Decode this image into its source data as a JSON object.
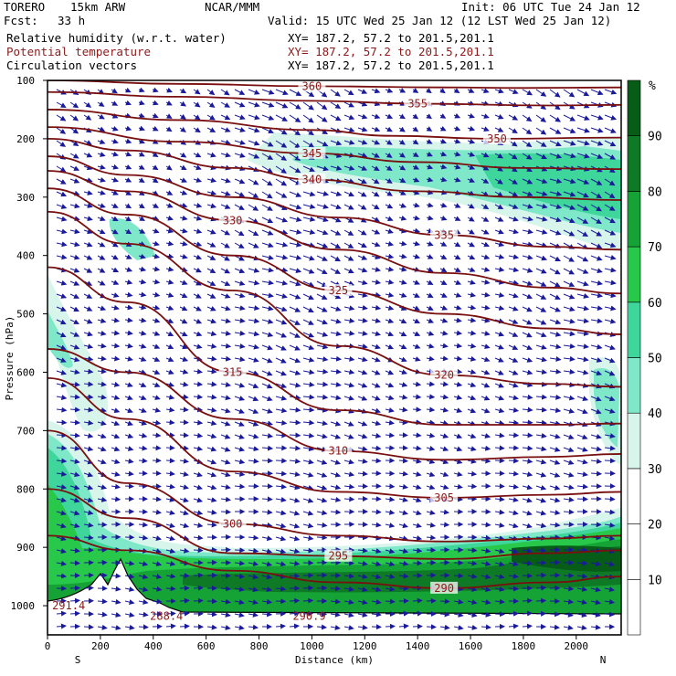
{
  "header": {
    "model": "TORERO",
    "resolution": "15km ARW",
    "center": "NCAR/MMM",
    "init": "Init: 06 UTC Tue 24 Jan 12",
    "fcst_label": "Fcst:",
    "fcst_value": "33 h",
    "valid": "Valid: 15 UTC Wed 25 Jan 12 (12 LST Wed 25 Jan 12)",
    "fields": [
      {
        "name": "Relative humidity (w.r.t. water)",
        "xy": "XY= 187.2, 57.2 to 201.5,201.1",
        "color": "#000000"
      },
      {
        "name": "Potential temperature",
        "xy": "XY= 187.2, 57.2 to 201.5,201.1",
        "color": "#8b1a1a"
      },
      {
        "name": "Circulation vectors",
        "xy": "XY= 187.2, 57.2 to 201.5,201.1",
        "color": "#000000"
      }
    ]
  },
  "chart_data": {
    "type": "heatmap",
    "xlabel": "Distance (km)",
    "ylabel": "Pressure (hPa)",
    "xlim": [
      0,
      2170
    ],
    "ylim": [
      1050,
      100
    ],
    "x_ticks": [
      "0",
      "200",
      "400",
      "600",
      "800",
      "1000",
      "1200",
      "1400",
      "1600",
      "1800",
      "2000"
    ],
    "y_ticks": [
      "100",
      "200",
      "300",
      "400",
      "500",
      "600",
      "700",
      "800",
      "900",
      "1000"
    ],
    "x_end_labels": {
      "left": "S",
      "right": "N"
    },
    "colorbar": {
      "unit": "%",
      "levels": [
        "10",
        "20",
        "30",
        "40",
        "50",
        "60",
        "70",
        "80",
        "90"
      ],
      "colors": [
        "#ffffff",
        "#ffffff",
        "#ffffff",
        "#d8f5ec",
        "#7ee8c8",
        "#3ed69a",
        "#28c84a",
        "#15a336",
        "#0e7a26",
        "#075c18"
      ]
    },
    "theta_contours": [
      {
        "label": "360",
        "points": [
          [
            0,
            100
          ],
          [
            500,
            106
          ],
          [
            1000,
            110
          ],
          [
            1500,
            112
          ],
          [
            1800,
            113
          ],
          [
            2170,
            112
          ]
        ]
      },
      {
        "label": "355",
        "points": [
          [
            0,
            120
          ],
          [
            500,
            128
          ],
          [
            1000,
            135
          ],
          [
            1400,
            140
          ],
          [
            1900,
            143
          ],
          [
            2170,
            142
          ]
        ]
      },
      {
        "label": "350",
        "points": [
          [
            0,
            150
          ],
          [
            500,
            168
          ],
          [
            1000,
            185
          ],
          [
            1300,
            195
          ],
          [
            1700,
            200
          ],
          [
            2170,
            198
          ]
        ]
      },
      {
        "label": "345",
        "points": [
          [
            0,
            180
          ],
          [
            500,
            205
          ],
          [
            1000,
            225
          ],
          [
            1400,
            240
          ],
          [
            1800,
            250
          ],
          [
            2170,
            252
          ]
        ]
      },
      {
        "label": "340",
        "points": [
          [
            0,
            200
          ],
          [
            300,
            220
          ],
          [
            700,
            250
          ],
          [
            1000,
            270
          ],
          [
            1400,
            290
          ],
          [
            1800,
            300
          ],
          [
            2170,
            305
          ]
        ]
      },
      {
        "label": "335",
        "points": [
          [
            0,
            230
          ],
          [
            300,
            262
          ],
          [
            700,
            300
          ],
          [
            1100,
            335
          ],
          [
            1500,
            365
          ],
          [
            1900,
            385
          ],
          [
            2170,
            390
          ]
        ]
      },
      {
        "label": "330",
        "points": [
          [
            0,
            255
          ],
          [
            300,
            290
          ],
          [
            700,
            340
          ],
          [
            1100,
            390
          ],
          [
            1500,
            430
          ],
          [
            1900,
            455
          ],
          [
            2170,
            465
          ]
        ]
      },
      {
        "label": "325",
        "points": [
          [
            0,
            285
          ],
          [
            300,
            330
          ],
          [
            700,
            400
          ],
          [
            1100,
            460
          ],
          [
            1500,
            500
          ],
          [
            1900,
            525
          ],
          [
            2170,
            535
          ]
        ]
      },
      {
        "label": "320",
        "points": [
          [
            0,
            325
          ],
          [
            300,
            380
          ],
          [
            700,
            460
          ],
          [
            1100,
            555
          ],
          [
            1500,
            605
          ],
          [
            1900,
            620
          ],
          [
            2170,
            625
          ]
        ]
      },
      {
        "label": "315",
        "points": [
          [
            0,
            420
          ],
          [
            300,
            480
          ],
          [
            700,
            600
          ],
          [
            1100,
            665
          ],
          [
            1500,
            690
          ],
          [
            1900,
            690
          ],
          [
            2170,
            688
          ]
        ]
      },
      {
        "label": "310",
        "points": [
          [
            0,
            560
          ],
          [
            300,
            600
          ],
          [
            700,
            680
          ],
          [
            1100,
            735
          ],
          [
            1500,
            750
          ],
          [
            1900,
            745
          ],
          [
            2170,
            740
          ]
        ]
      },
      {
        "label": "305",
        "points": [
          [
            0,
            610
          ],
          [
            300,
            680
          ],
          [
            700,
            770
          ],
          [
            1100,
            805
          ],
          [
            1500,
            815
          ],
          [
            1900,
            810
          ],
          [
            2170,
            805
          ]
        ]
      },
      {
        "label": "300",
        "points": [
          [
            0,
            700
          ],
          [
            300,
            790
          ],
          [
            700,
            860
          ],
          [
            1100,
            880
          ],
          [
            1500,
            890
          ],
          [
            1900,
            885
          ],
          [
            2170,
            880
          ]
        ]
      },
      {
        "label": "295",
        "points": [
          [
            0,
            800
          ],
          [
            300,
            850
          ],
          [
            700,
            910
          ],
          [
            1100,
            915
          ],
          [
            1500,
            920
          ],
          [
            1900,
            910
          ],
          [
            2170,
            905
          ]
        ]
      },
      {
        "label": "290",
        "points": [
          [
            0,
            880
          ],
          [
            300,
            905
          ],
          [
            700,
            940
          ],
          [
            1100,
            960
          ],
          [
            1500,
            970
          ],
          [
            1900,
            960
          ],
          [
            2170,
            950
          ]
        ]
      }
    ],
    "annotations": [
      {
        "text": "291.4",
        "x": 80,
        "y": 1000
      },
      {
        "text": "288.4",
        "x": 450,
        "y": 1018
      },
      {
        "text": "290.9",
        "x": 990,
        "y": 1018
      }
    ]
  }
}
